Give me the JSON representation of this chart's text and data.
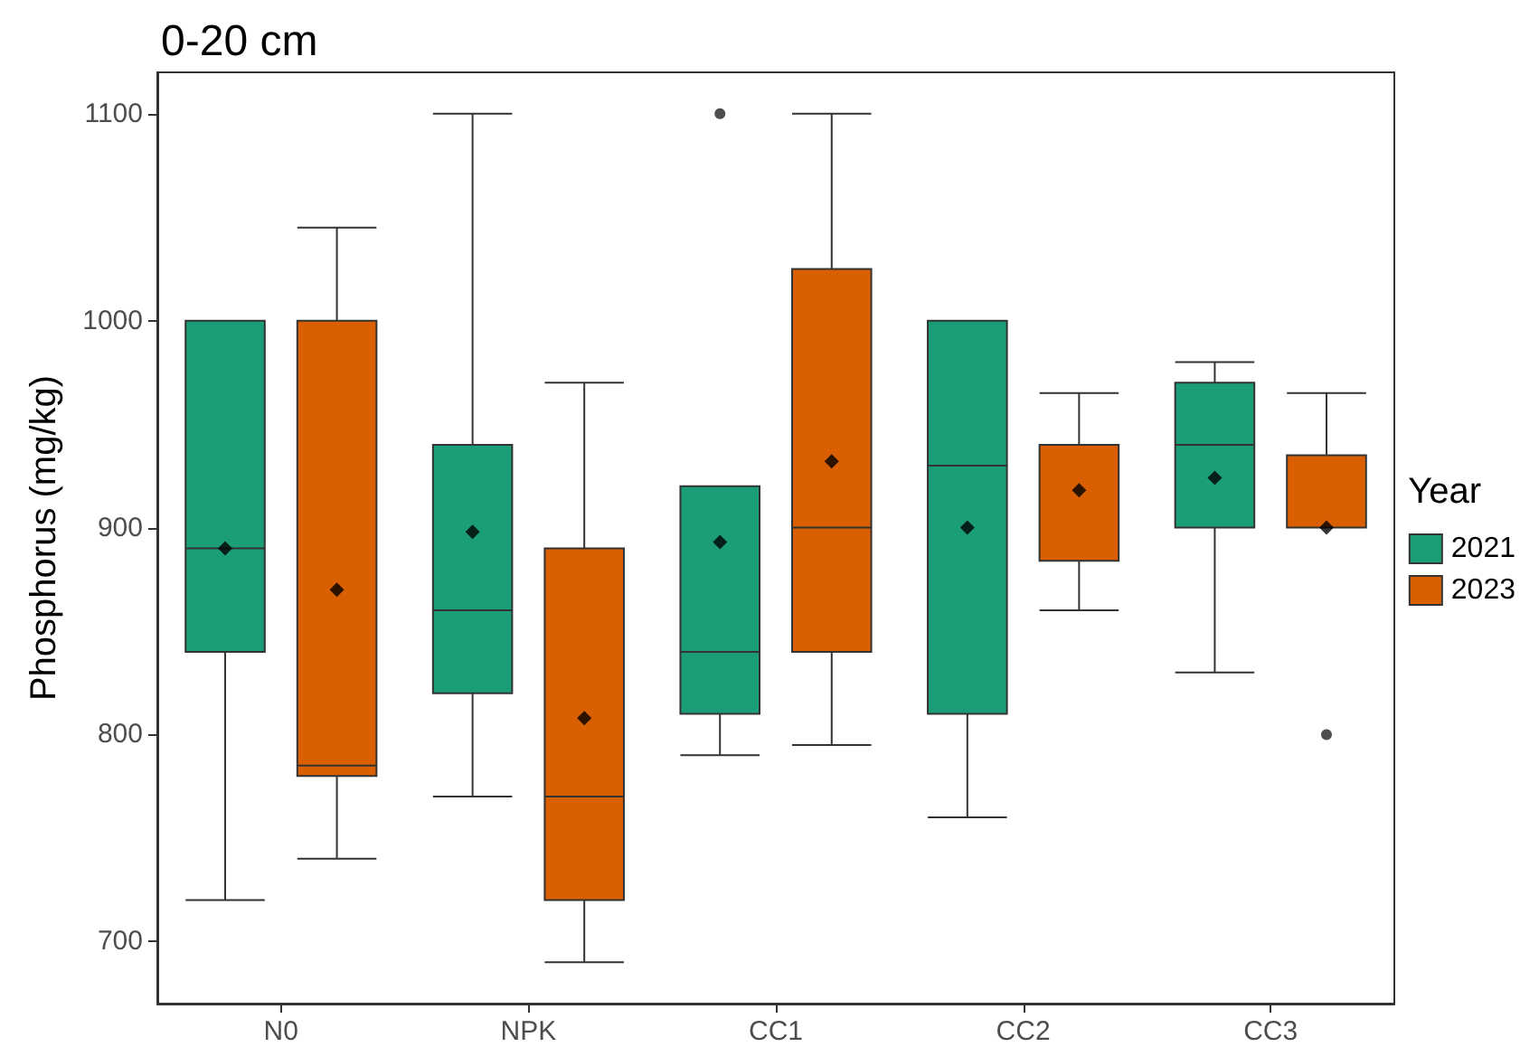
{
  "chart_data": {
    "type": "box",
    "title": "0-20 cm",
    "ylabel": "Phosphorus (mg/kg)",
    "legend_title": "Year",
    "categories": [
      "N0",
      "NPK",
      "CC1",
      "CC2",
      "CC3"
    ],
    "series": [
      {
        "name": "2021",
        "color": "#1b9e77",
        "boxes": [
          {
            "low": 720,
            "q1": 840,
            "median": 890,
            "q3": 1000,
            "high": 1000,
            "mean": 890
          },
          {
            "low": 770,
            "q1": 820,
            "median": 860,
            "q3": 940,
            "high": 1100,
            "mean": 898
          },
          {
            "low": 790,
            "q1": 810,
            "median": 840,
            "q3": 920,
            "high": 920,
            "mean": 893,
            "outliers": [
              1100
            ]
          },
          {
            "low": 760,
            "q1": 810,
            "median": 930,
            "q3": 1000,
            "high": 1000,
            "mean": 900
          },
          {
            "low": 830,
            "q1": 900,
            "median": 940,
            "q3": 970,
            "high": 980,
            "mean": 924
          }
        ]
      },
      {
        "name": "2023",
        "color": "#d95f02",
        "boxes": [
          {
            "low": 740,
            "q1": 780,
            "median": 785,
            "q3": 1000,
            "high": 1045,
            "mean": 870
          },
          {
            "low": 690,
            "q1": 720,
            "median": 770,
            "q3": 890,
            "high": 970,
            "mean": 808
          },
          {
            "low": 795,
            "q1": 840,
            "median": 900,
            "q3": 1025,
            "high": 1100,
            "mean": 932
          },
          {
            "low": 860,
            "q1": 884,
            "median": 940,
            "q3": 940,
            "high": 965,
            "mean": 918
          },
          {
            "low": 900,
            "q1": 900,
            "median": 900,
            "q3": 935,
            "high": 965,
            "mean": 900,
            "outliers": [
              800
            ]
          }
        ]
      }
    ],
    "ylim": [
      670,
      1120
    ],
    "yticks": [
      700,
      800,
      900,
      1000,
      1100
    ],
    "grid": false,
    "legend": "right",
    "marker": "diamond"
  }
}
